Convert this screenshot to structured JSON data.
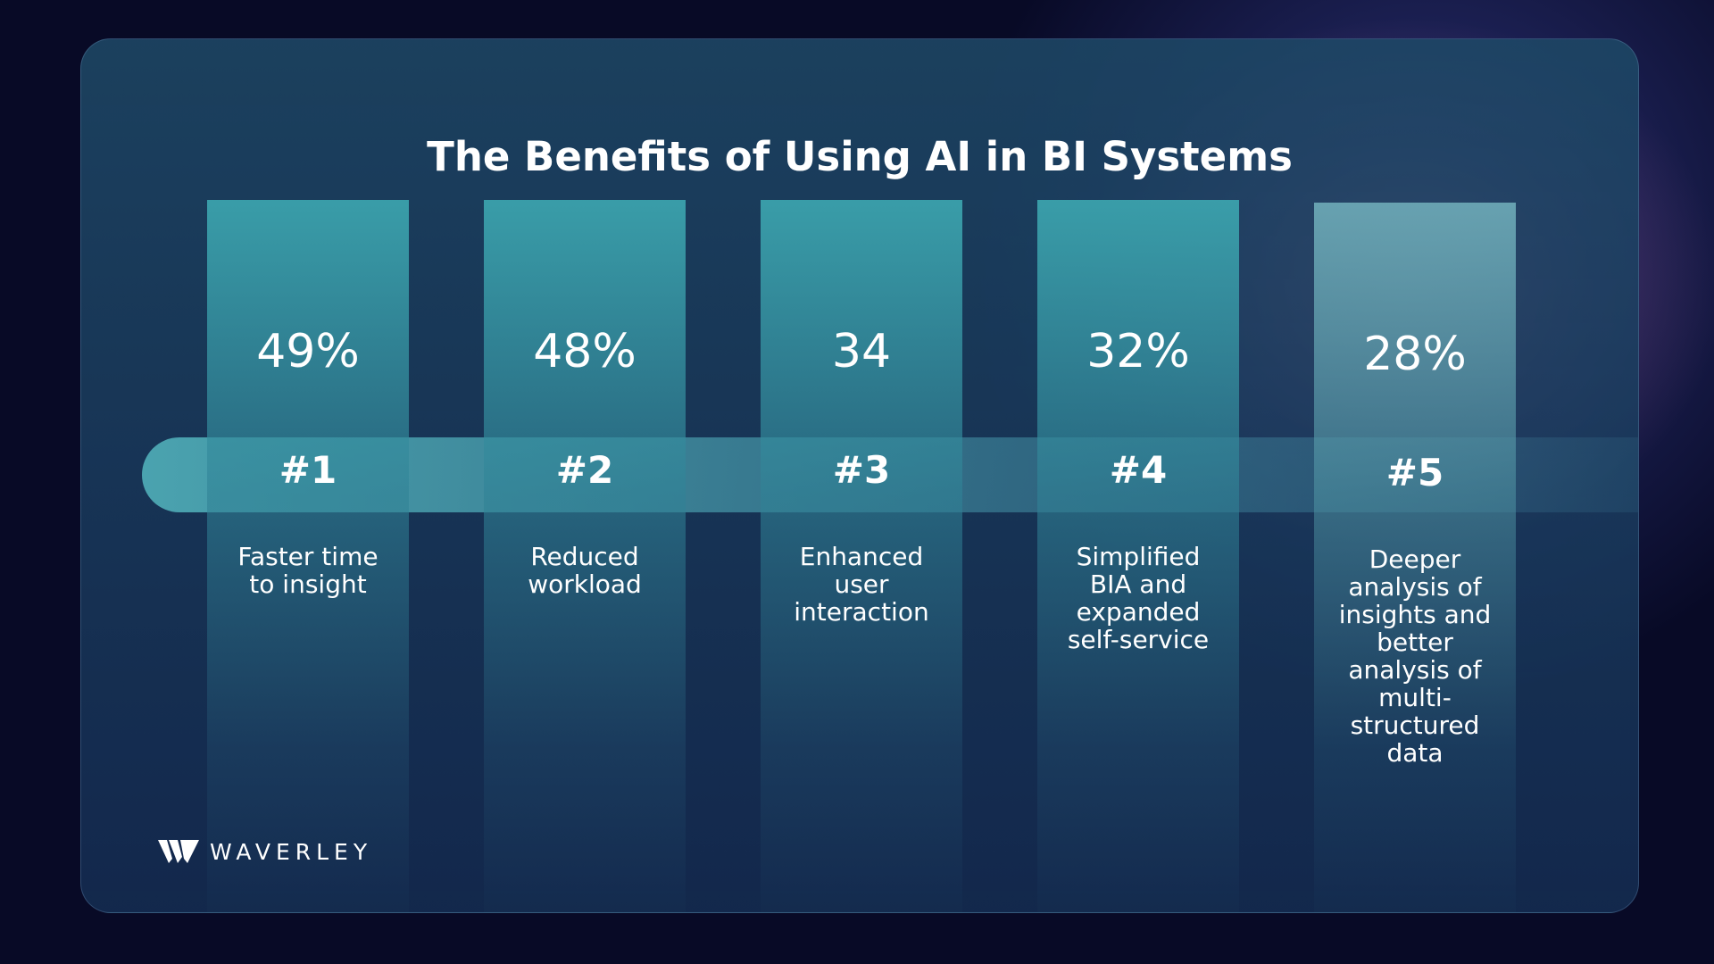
{
  "title": "The Benefits of Using AI in BI Systems",
  "benefits": [
    {
      "percent": "49%",
      "rank": "#1",
      "label": "Faster time to insight"
    },
    {
      "percent": "48%",
      "rank": "#2",
      "label": "Reduced workload"
    },
    {
      "percent": "34",
      "rank": "#3",
      "label": "Enhanced user interaction"
    },
    {
      "percent": "32%",
      "rank": "#4",
      "label": "Simplified BIA and expanded self-service"
    },
    {
      "percent": "28%",
      "rank": "#5",
      "label": "Deeper analysis of insights and better analysis of multi-structured data"
    }
  ],
  "brand": {
    "name": "WAVERLEY",
    "logo_icon": "waverley-w-logo-icon"
  },
  "colors": {
    "background": "#080a26",
    "card": "#1e4866",
    "column_top": "#3ca5af",
    "accent_glow": "#d6788c"
  }
}
